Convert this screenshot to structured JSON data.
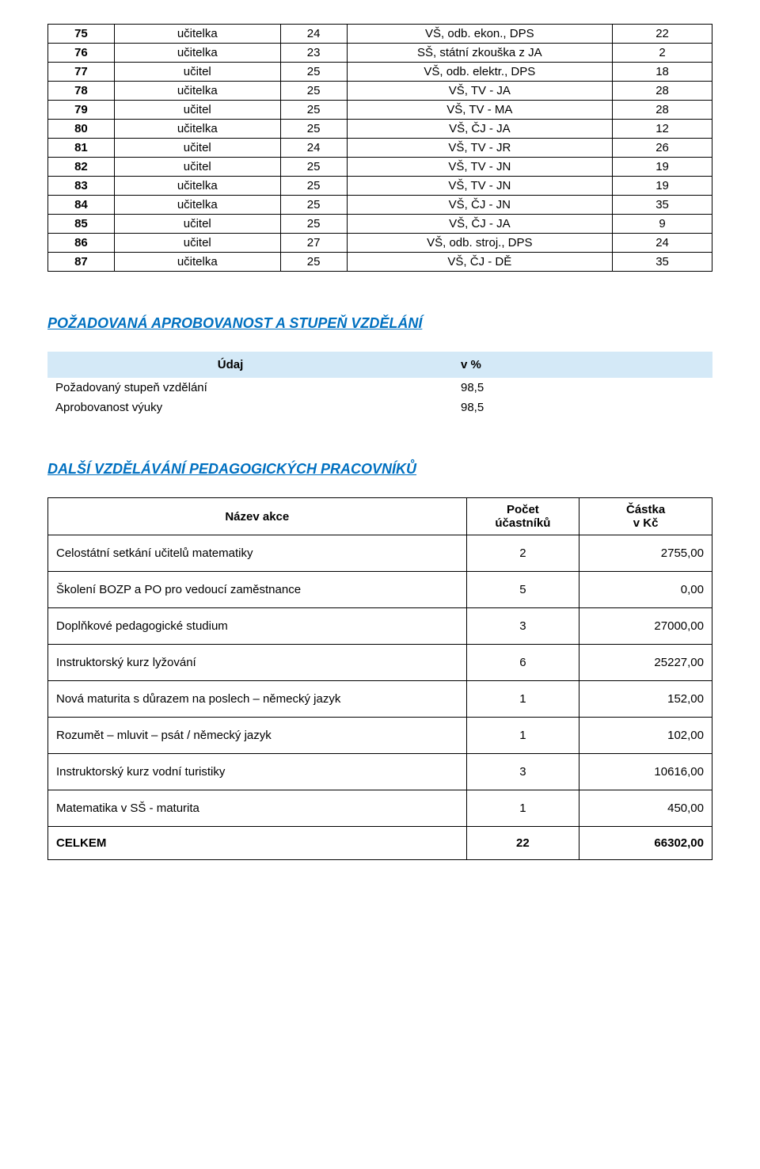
{
  "teachers_table": {
    "rows": [
      {
        "n": "75",
        "role": "učitelka",
        "h": "24",
        "qual": "VŠ, odb. ekon., DPS",
        "y": "22"
      },
      {
        "n": "76",
        "role": "učitelka",
        "h": "23",
        "qual": "SŠ, státní zkouška z JA",
        "y": "2"
      },
      {
        "n": "77",
        "role": "učitel",
        "h": "25",
        "qual": "VŠ, odb. elektr., DPS",
        "y": "18"
      },
      {
        "n": "78",
        "role": "učitelka",
        "h": "25",
        "qual": "VŠ, TV - JA",
        "y": "28"
      },
      {
        "n": "79",
        "role": "učitel",
        "h": "25",
        "qual": "VŠ, TV - MA",
        "y": "28"
      },
      {
        "n": "80",
        "role": "učitelka",
        "h": "25",
        "qual": "VŠ, ČJ - JA",
        "y": "12"
      },
      {
        "n": "81",
        "role": "učitel",
        "h": "24",
        "qual": "VŠ, TV - JR",
        "y": "26"
      },
      {
        "n": "82",
        "role": "učitel",
        "h": "25",
        "qual": "VŠ, TV - JN",
        "y": "19"
      },
      {
        "n": "83",
        "role": "učitelka",
        "h": "25",
        "qual": "VŠ, TV - JN",
        "y": "19"
      },
      {
        "n": "84",
        "role": "učitelka",
        "h": "25",
        "qual": "VŠ, ČJ - JN",
        "y": "35"
      },
      {
        "n": "85",
        "role": "učitel",
        "h": "25",
        "qual": "VŠ, ČJ - JA",
        "y": "9"
      },
      {
        "n": "86",
        "role": "učitel",
        "h": "27",
        "qual": "VŠ, odb. stroj., DPS",
        "y": "24"
      },
      {
        "n": "87",
        "role": "učitelka",
        "h": "25",
        "qual": "VŠ, ČJ - DĚ",
        "y": "35"
      }
    ]
  },
  "section1": {
    "title": "POŽADOVANÁ  APROBOVANOST A STUPEŇ  VZDĚLÁNÍ",
    "header_label": "Údaj",
    "header_value": "v %",
    "rows": [
      {
        "label": "Požadovaný stupeň vzdělání",
        "value": "98,5"
      },
      {
        "label": "Aprobovanost výuky",
        "value": "98,5"
      }
    ]
  },
  "section2": {
    "title": "DALŠÍ VZDĚLÁVÁNÍ PEDAGOGICKÝCH PRACOVNÍKŮ",
    "headers": {
      "name": "Název akce",
      "count_line1": "Počet",
      "count_line2": "účastníků",
      "amount_line1": "Částka",
      "amount_line2": "v Kč"
    },
    "rows": [
      {
        "name": "Celostátní setkání učitelů matematiky",
        "count": "2",
        "amount": "2755,00"
      },
      {
        "name": "Školení BOZP a PO pro vedoucí zaměstnance",
        "count": "5",
        "amount": "0,00"
      },
      {
        "name": "Doplňkové pedagogické studium",
        "count": "3",
        "amount": "27000,00"
      },
      {
        "name": "Instruktorský kurz lyžování",
        "count": "6",
        "amount": "25227,00"
      },
      {
        "name": "Nová maturita s důrazem na poslech – německý jazyk",
        "count": "1",
        "amount": "152,00"
      },
      {
        "name": "Rozumět – mluvit – psát / německý jazyk",
        "count": "1",
        "amount": "102,00"
      },
      {
        "name": "Instruktorský kurz vodní turistiky",
        "count": "3",
        "amount": "10616,00"
      },
      {
        "name": "Matematika v SŠ - maturita",
        "count": "1",
        "amount": "450,00"
      }
    ],
    "total": {
      "name": "CELKEM",
      "count": "22",
      "amount": "66302,00"
    }
  }
}
